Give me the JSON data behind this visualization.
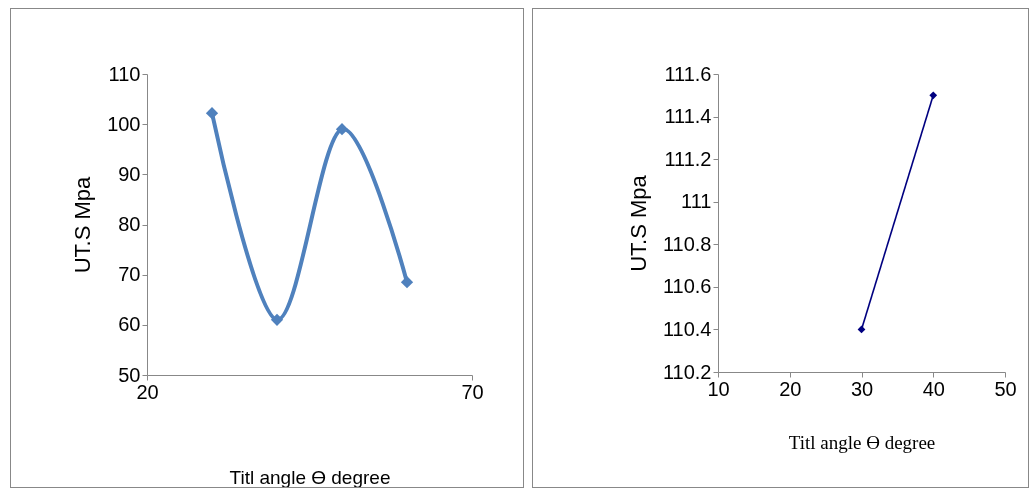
{
  "chart_data": [
    {
      "type": "line",
      "xlabel": "Titl angle ϴ degree",
      "ylabel": "UT.S Mpa",
      "x": [
        30,
        40,
        50,
        60
      ],
      "series": [
        {
          "color": "#4f81bd",
          "values": [
            102.2,
            61,
            99,
            68.5
          ]
        }
      ],
      "xlim": [
        20,
        70
      ],
      "xticks": [
        20,
        70
      ],
      "ylim": [
        50,
        110
      ],
      "yticks": [
        50,
        60,
        70,
        80,
        90,
        100,
        110
      ],
      "grid": false,
      "legend": false,
      "marker": "diamond",
      "line_style": "solid"
    },
    {
      "type": "line",
      "xlabel": "Titl angle ϴ degree",
      "ylabel": "UT.S Mpa",
      "x": [
        30,
        40
      ],
      "series": [
        {
          "color": "#000080",
          "values": [
            110.4,
            111.5
          ]
        }
      ],
      "xlim": [
        10,
        50
      ],
      "xticks": [
        10,
        20,
        30,
        40,
        50
      ],
      "ylim": [
        110.2,
        111.6
      ],
      "yticks": [
        110.2,
        110.4,
        110.6,
        110.8,
        111,
        111.2,
        111.4,
        111.6
      ],
      "grid": false,
      "legend": false,
      "marker": "diamond",
      "line_style": "solid"
    }
  ]
}
